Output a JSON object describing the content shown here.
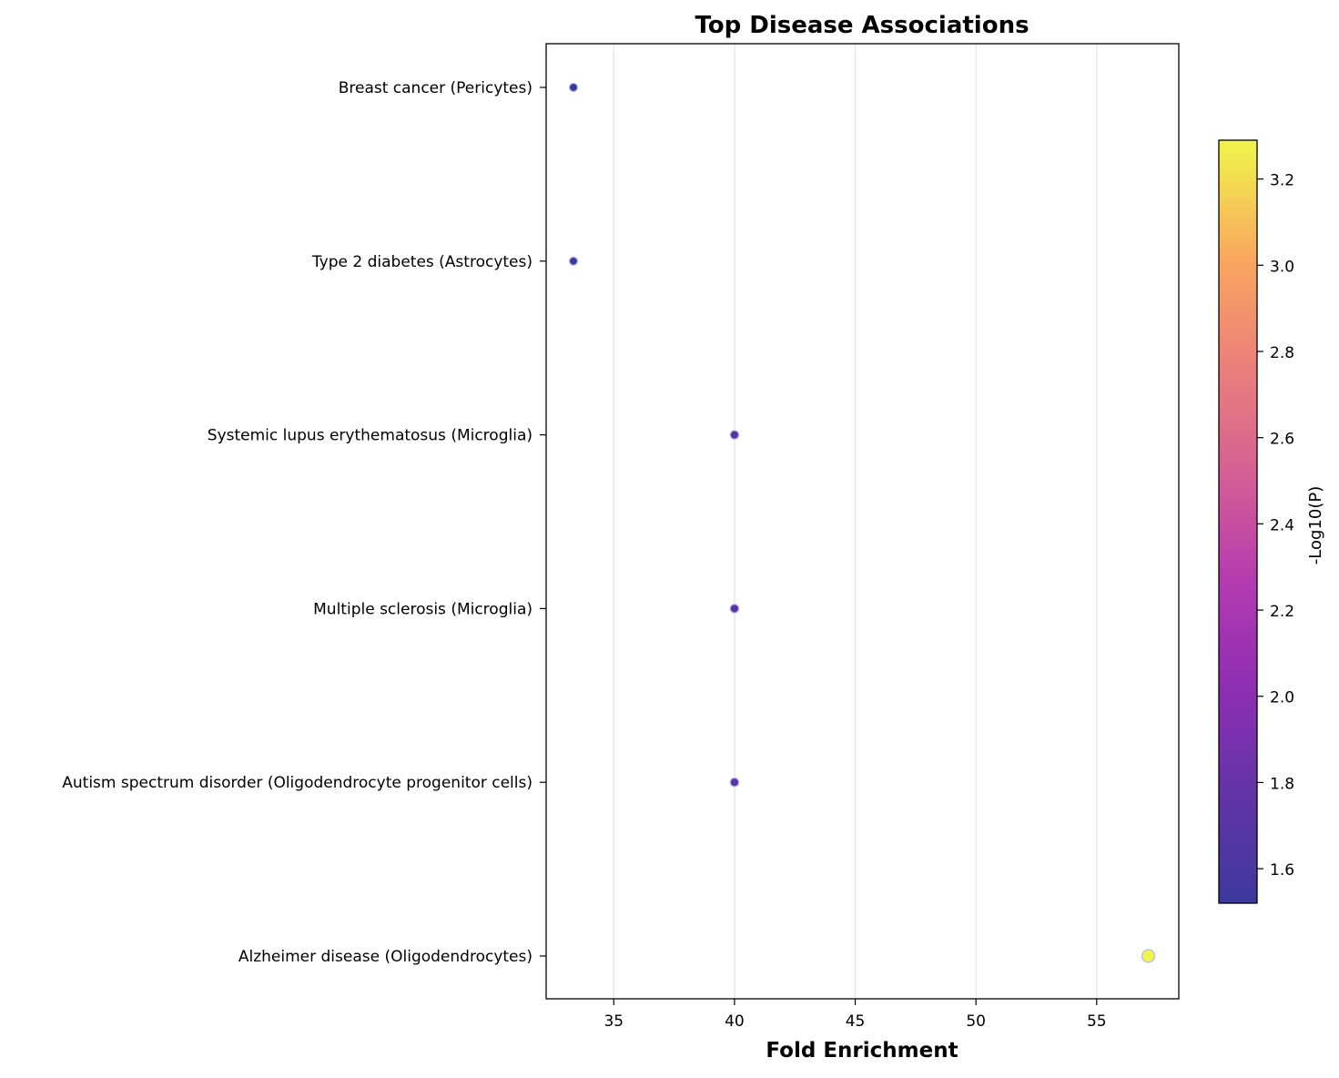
{
  "chart_data": {
    "type": "scatter",
    "title": "Top Disease Associations",
    "xlabel": "Fold Enrichment",
    "ylabel": "",
    "xlim": [
      32.2,
      58.4
    ],
    "xticks": [
      "35",
      "40",
      "45",
      "50",
      "55"
    ],
    "xtick_values": [
      35,
      40,
      45,
      50,
      55
    ],
    "grid": "vertical",
    "legend": "none",
    "categories": [
      "Breast cancer (Pericytes)",
      "Type 2 diabetes (Astrocytes)",
      "Systemic lupus erythematosus (Microglia)",
      "Multiple sclerosis (Microglia)",
      "Autism spectrum disorder (Oligodendrocyte progenitor cells)",
      "Alzheimer disease (Oligodendrocytes)"
    ],
    "points": [
      {
        "category": "Breast cancer (Pericytes)",
        "x": 33.33,
        "neg_log10_p": 1.52
      },
      {
        "category": "Type 2 diabetes (Astrocytes)",
        "x": 33.33,
        "neg_log10_p": 1.52
      },
      {
        "category": "Systemic lupus erythematosus (Microglia)",
        "x": 40.0,
        "neg_log10_p": 1.68
      },
      {
        "category": "Multiple sclerosis (Microglia)",
        "x": 40.0,
        "neg_log10_p": 1.68
      },
      {
        "category": "Autism spectrum disorder (Oligodendrocyte progenitor cells)",
        "x": 40.0,
        "neg_log10_p": 1.68
      },
      {
        "category": "Alzheimer disease (Oligodendrocytes)",
        "x": 57.14,
        "neg_log10_p": 3.29
      }
    ],
    "colorbar": {
      "label": "-Log10(P)",
      "colormap": "plasma",
      "range": [
        1.52,
        3.29
      ],
      "ticks": [
        "1.6",
        "1.8",
        "2.0",
        "2.2",
        "2.4",
        "2.6",
        "2.8",
        "3.0",
        "3.2"
      ],
      "tick_values": [
        1.6,
        1.8,
        2.0,
        2.2,
        2.4,
        2.6,
        2.8,
        3.0,
        3.2
      ]
    }
  }
}
